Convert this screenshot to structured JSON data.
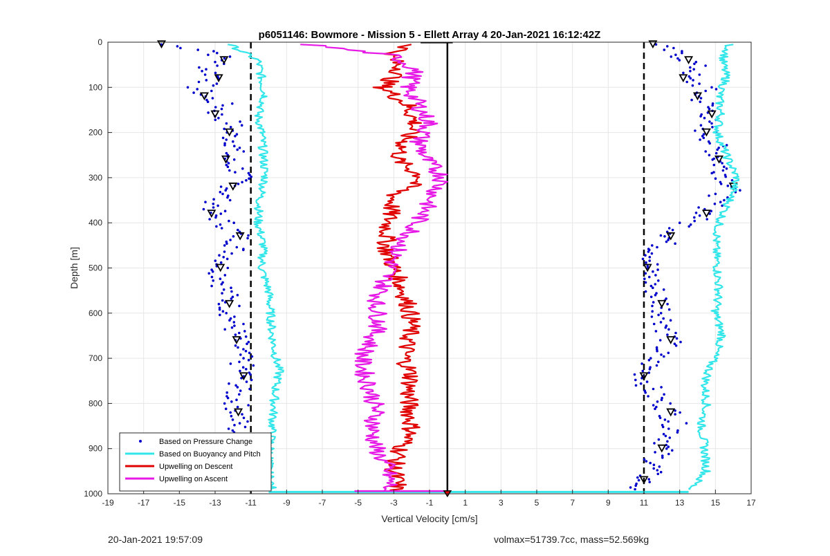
{
  "footer": {
    "left": "20-Jan-2021 19:57:09",
    "right": "volmax=51739.7cc, mass=52.569kg"
  },
  "chart_data": {
    "type": "line",
    "title": "p6051146: Bowmore - Mission 5 - Ellett Array 4 20-Jan-2021 16:12:42Z",
    "xlabel": "Vertical Velocity [cm/s]",
    "ylabel": "Depth [m]",
    "xlim": [
      -19,
      17
    ],
    "ylim": [
      0,
      1000
    ],
    "y_reversed": true,
    "x_ticks": [
      -19,
      -17,
      -15,
      -13,
      -11,
      -9,
      -7,
      -5,
      -3,
      -1,
      1,
      3,
      5,
      7,
      9,
      11,
      13,
      15,
      17
    ],
    "y_ticks": [
      0,
      100,
      200,
      300,
      400,
      500,
      600,
      700,
      800,
      900,
      1000
    ],
    "grid": true,
    "legend_placement": "bottom-left",
    "reference_lines": [
      {
        "style": "dashed",
        "color": "#000000",
        "x": -11
      },
      {
        "style": "dashed",
        "color": "#000000",
        "x": 11
      },
      {
        "style": "solid",
        "color": "#000000",
        "x": 0
      }
    ],
    "series": [
      {
        "name": "Based on Pressure Change",
        "color": "#0000cc",
        "style": "markers",
        "groups": [
          {
            "depth": [
              5,
              20,
              40,
              60,
              80,
              100,
              120,
              140,
              160,
              180,
              200,
              230,
              260,
              290,
              320,
              350,
              380,
              400,
              430,
              460,
              500,
              540,
              580,
              620,
              660,
              700,
              740,
              780,
              820,
              860,
              900,
              940,
              970,
              990
            ],
            "x": [
              -16,
              -13,
              -12.5,
              -13.5,
              -12.8,
              -14,
              -13.6,
              -12.5,
              -13,
              -12,
              -12.2,
              -11.8,
              -12.4,
              -11.5,
              -12,
              -12.8,
              -13.2,
              -12.5,
              -11.6,
              -11.9,
              -12.7,
              -12.5,
              -12.2,
              -12,
              -11.8,
              -11.6,
              -11.4,
              -11.9,
              -11.7,
              -11.8,
              -12,
              -11.9,
              -11.8,
              -11.9
            ]
          },
          {
            "depth": [
              5,
              20,
              40,
              60,
              80,
              100,
              120,
              140,
              160,
              180,
              200,
              230,
              260,
              290,
              320,
              350,
              380,
              400,
              430,
              460,
              500,
              540,
              580,
              620,
              660,
              700,
              740,
              780,
              820,
              860,
              900,
              940,
              970,
              990
            ],
            "x": [
              11.5,
              12.5,
              13.5,
              14,
              13.2,
              14.5,
              14,
              14.5,
              14.8,
              14.2,
              14.5,
              15,
              15.2,
              15.5,
              16,
              15,
              14.5,
              13.5,
              12.5,
              11.8,
              11.2,
              11.5,
              12,
              12.2,
              12.5,
              11.5,
              11,
              11.5,
              12.5,
              12.8,
              12,
              11.5,
              11,
              10.5
            ]
          }
        ]
      },
      {
        "name": "Based on Buoyancy and Pitch",
        "color": "#33e6ea",
        "style": "line",
        "groups": [
          {
            "depth": [
              5,
              40,
              80,
              120,
              160,
              200,
              250,
              300,
              350,
              400,
              450,
              500,
              550,
              600,
              650,
              700,
              730,
              760,
              800,
              850,
              900,
              950,
              990
            ],
            "x": [
              -12.2,
              -10.6,
              -10.4,
              -10.2,
              -10.6,
              -10.4,
              -10.3,
              -10.2,
              -10.5,
              -10.6,
              -10.3,
              -10.4,
              -10.0,
              -9.9,
              -9.8,
              -9.6,
              -9.4,
              -9.6,
              -9.7,
              -9.8,
              -9.9,
              -10.0,
              -9.8
            ]
          },
          {
            "depth": [
              5,
              40,
              80,
              120,
              160,
              200,
              250,
              300,
              350,
              400,
              450,
              500,
              550,
              600,
              650,
              700,
              730,
              760,
              800,
              850,
              900,
              950,
              990
            ],
            "x": [
              15.8,
              15.4,
              15.6,
              15.2,
              15.3,
              15.1,
              15.6,
              16.2,
              15.8,
              15.2,
              15.0,
              15.1,
              15.2,
              15.0,
              15.4,
              14.9,
              14.6,
              14.4,
              14.5,
              14.2,
              14.4,
              14.5,
              13.6
            ]
          }
        ]
      },
      {
        "name": "Upwelling on Descent",
        "color": "#e00000",
        "style": "line",
        "groups": [
          {
            "depth": [
              5,
              30,
              60,
              100,
              140,
              180,
              220,
              260,
              300,
              340,
              380,
              420,
              460,
              500,
              540,
              580,
              620,
              660,
              700,
              740,
              780,
              820,
              860,
              900,
              940,
              980,
              995
            ],
            "x": [
              -2.0,
              -3.2,
              -2.6,
              -3.6,
              -2.2,
              -1.8,
              -2.4,
              -2.8,
              -1.4,
              -3.0,
              -3.2,
              -3.4,
              -3.4,
              -3.0,
              -2.6,
              -2.2,
              -2.0,
              -2.2,
              -2.4,
              -2.0,
              -2.2,
              -2.1,
              -2.0,
              -2.6,
              -3.0,
              -2.8,
              -3.0
            ]
          }
        ]
      },
      {
        "name": "Upwelling on Ascent",
        "color": "#e619e6",
        "style": "line",
        "groups": [
          {
            "depth": [
              5,
              30,
              60,
              100,
              140,
              180,
              220,
              260,
              300,
              340,
              380,
              420,
              460,
              500,
              540,
              580,
              620,
              660,
              700,
              740,
              780,
              820,
              860,
              900,
              940,
              980,
              995
            ],
            "x": [
              -7.8,
              -3.0,
              -1.8,
              -2.2,
              -1.6,
              -1.0,
              -1.6,
              -1.2,
              -0.2,
              -0.8,
              -1.4,
              -2.0,
              -2.8,
              -3.2,
              -3.6,
              -4.0,
              -3.8,
              -4.2,
              -4.8,
              -4.6,
              -4.2,
              -4.0,
              -4.2,
              -4.0,
              -3.4,
              -3.2,
              -3.4
            ]
          }
        ]
      }
    ]
  }
}
